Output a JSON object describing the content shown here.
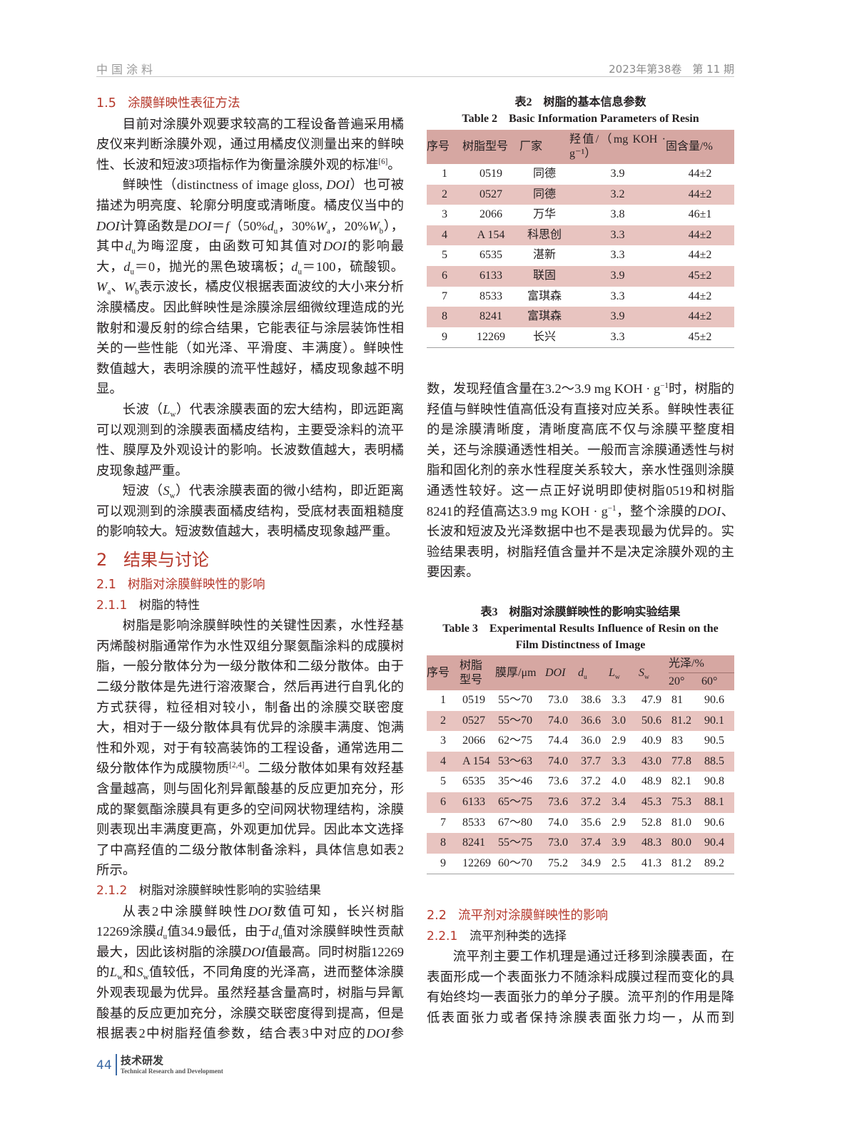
{
  "header": {
    "journal": "中国涂料",
    "issue": "2023年第38卷　第 11 期"
  },
  "footer": {
    "page": "44",
    "section_cn": "技术研发",
    "section_en": "Technical Research and Development"
  },
  "colors": {
    "heading": "#b5382b",
    "table_header": "#d6a7a2",
    "table_stripe": "#e8c4c0",
    "footer_accent": "#3c6aa5"
  },
  "left": {
    "s15": {
      "num": "1.5",
      "title": "涂膜鲜映性表征方法"
    },
    "p1": [
      "目前对涂膜外观要求较高的工程设备普遍采用橘皮仪来判断涂膜外观，通过用橘皮仪测量出来的鲜映性、长波和短波3项指标作为衡量涂膜外观的标准",
      {
        "sup": "[6]"
      },
      "。"
    ],
    "p2": [
      "鲜映性（distinctness of image gloss, ",
      {
        "i": "DOI"
      },
      "）也可被描述为明亮度、轮廓分明度或清晰度。橘皮仪当中的",
      {
        "i": "DOI"
      },
      "计算函数是",
      {
        "i": "DOI"
      },
      "＝",
      {
        "i": "f"
      },
      "（50%",
      {
        "i": "d"
      },
      {
        "sub": "u"
      },
      "，30%",
      {
        "i": "W"
      },
      {
        "sub": "a"
      },
      "，20%",
      {
        "i": "W"
      },
      {
        "sub": "b"
      },
      "），其中",
      {
        "i": "d"
      },
      {
        "sub": "u"
      },
      "为晦涩度，由函数可知其值对",
      {
        "i": "DOI"
      },
      "的影响最大，",
      {
        "i": "d"
      },
      {
        "sub": "u"
      },
      "＝0，抛光的黑色玻璃板；",
      {
        "i": "d"
      },
      {
        "sub": "u"
      },
      "＝100，硫酸钡。",
      {
        "i": "W"
      },
      {
        "sub": "a"
      },
      "、",
      {
        "i": "W"
      },
      {
        "sub": "b"
      },
      "表示波长，橘皮仪根据表面波纹的大小来分析涂膜橘皮。因此鲜映性是涂膜涂层细微纹理造成的光散射和漫反射的综合结果，它能表征与涂层装饰性相关的一些性能（如光泽、平滑度、丰满度）。鲜映性数值越大，表明涂膜的流平性越好，橘皮现象越不明显。"
    ],
    "p3": [
      "长波（",
      {
        "i": "L"
      },
      {
        "sub": "w"
      },
      "）代表涂膜表面的宏大结构，即远距离可以观测到的涂膜表面橘皮结构，主要受涂料的流平性、膜厚及外观设计的影响。长波数值越大，表明橘皮现象越严重。"
    ],
    "p4": [
      "短波（",
      {
        "i": "S"
      },
      {
        "sub": "w"
      },
      "）代表涂膜表面的微小结构，即近距离可以观测到的涂膜表面橘皮结构，受底材表面粗糙度的影响较大。短波数值越大，表明橘皮现象越严重。"
    ],
    "s2": {
      "num": "2",
      "title": "结果与讨论"
    },
    "s21": {
      "num": "2.1",
      "title": "树脂对涂膜鲜映性的影响"
    },
    "s211": {
      "num": "2.1.1",
      "title": "树脂的特性"
    },
    "p5": [
      "树脂是影响涂膜鲜映性的关键性因素，水性羟基丙烯酸树脂通常作为水性双组分聚氨酯涂料的成膜树脂，一般分散体分为一级分散体和二级分散体。由于二级分散体是先进行溶液聚合，然后再进行自乳化的方式获得，粒径相对较小，制备出的涂膜交联密度大，相对于一级分散体具有优异的涂膜丰满度、饱满性和外观，对于有较高装饰的工程设备，通常选用二级分散体作为成膜物质",
      {
        "sup": "[2,4]"
      },
      "。二级分散体如果有效羟基含量越高，则与固化剂异氰酸基的反应更加充分，形成的聚氨酯涂膜具有更多的空间网状物理结构，涂膜则表现出丰满度更高，外观更加优异。因此本文选择了中高羟值的二级分散体制备涂料，具体信息如表2所示。"
    ],
    "s212": {
      "num": "2.1.2",
      "title": "树脂对涂膜鲜映性影响的实验结果"
    },
    "p6": [
      "从表2中涂膜鲜映性",
      {
        "i": "DOI"
      },
      "数值可知，长兴树脂12269涂膜",
      {
        "i": "d"
      },
      {
        "sub": "u"
      },
      "值34.9最低，由于",
      {
        "i": "d"
      },
      {
        "sub": "u"
      },
      "值对涂膜鲜映性贡献最大，因此该树脂的涂膜",
      {
        "i": "DOI"
      },
      "值最高。同时树脂12269的",
      {
        "i": "L"
      },
      {
        "sub": "w"
      },
      "和",
      {
        "i": "S"
      },
      {
        "sub": "w"
      },
      "值较低，不同角度的光泽高，进而整体涂膜外观表现最为优异。虽然羟基含量高时，树脂与异氰酸基的反应更加充分，涂膜交联密度得到提高，但是根据表2中树脂羟值参数，结合表3中对应的",
      {
        "i": "DOI"
      },
      "参"
    ]
  },
  "table2": {
    "caption_cn": "表2　树脂的基本信息参数",
    "caption_en": "Table 2　Basic Information Parameters of Resin",
    "headers": [
      "序号",
      "树脂型号",
      "厂家",
      "羟值/（mg KOH · g⁻¹）",
      "固含量/%"
    ],
    "rows": [
      [
        "1",
        "0519",
        "同德",
        "3.9",
        "44±2"
      ],
      [
        "2",
        "0527",
        "同德",
        "3.2",
        "44±2"
      ],
      [
        "3",
        "2066",
        "万华",
        "3.8",
        "46±1"
      ],
      [
        "4",
        "A 154",
        "科思创",
        "3.3",
        "44±2"
      ],
      [
        "5",
        "6535",
        "湛新",
        "3.3",
        "44±2"
      ],
      [
        "6",
        "6133",
        "联固",
        "3.9",
        "45±2"
      ],
      [
        "7",
        "8533",
        "富琪森",
        "3.3",
        "44±2"
      ],
      [
        "8",
        "8241",
        "富琪森",
        "3.9",
        "44±2"
      ],
      [
        "9",
        "12269",
        "长兴",
        "3.3",
        "45±2"
      ]
    ]
  },
  "right": {
    "p7": [
      "数，发现羟值含量在3.2～3.9 mg KOH · g",
      {
        "sup": "−1"
      },
      "时，树脂的羟值与鲜映性值高低没有直接对应关系。鲜映性表征的是涂膜清晰度，清晰度高底不仅与涂膜平整度相关，还与涂膜通透性相关。一般而言涂膜通透性与树脂和固化剂的亲水性程度关系较大，亲水性强则涂膜通透性较好。这一点正好说明即使树脂0519和树脂8241的羟值高达3.9 mg KOH · g",
      {
        "sup": "−1"
      },
      "，整个涂膜的",
      {
        "i": "DOI"
      },
      "、长波和短波及光泽数据中也不是表现最为优异的。实验结果表明，树脂羟值含量并不是决定涂膜外观的主要因素。"
    ],
    "s22": {
      "num": "2.2",
      "title": "流平剂对涂膜鲜映性的影响"
    },
    "s221": {
      "num": "2.2.1",
      "title": "流平剂种类的选择"
    },
    "p8": [
      "流平剂主要工作机理是通过迁移到涂膜表面，在表面形成一个表面张力不随涂料成膜过程而变化的具有始终均一表面张力的单分子膜。流平剂的作用是降低表面张力或者保持涂膜表面张力均一，从而到"
    ]
  },
  "table3": {
    "caption_cn": "表3　树脂对涂膜鲜映性的影响实验结果",
    "caption_en_1": "Table 3　Experimental Results Influence of Resin on the",
    "caption_en_2": "Film Distinctness of Image",
    "headers": {
      "no": "序号",
      "resin_1": "树脂",
      "resin_2": "型号",
      "thickness": "膜厚/μm",
      "doi": "DOI",
      "du": "d",
      "du_sub": "u",
      "lw": "L",
      "lw_sub": "w",
      "sw": "S",
      "sw_sub": "w",
      "gloss": "光泽/%",
      "g20": "20°",
      "g60": "60°"
    },
    "rows": [
      [
        "1",
        "0519",
        "55～70",
        "73.0",
        "38.6",
        "3.3",
        "47.9",
        "81",
        "90.6"
      ],
      [
        "2",
        "0527",
        "55～70",
        "74.0",
        "36.6",
        "3.0",
        "50.6",
        "81.2",
        "90.1"
      ],
      [
        "3",
        "2066",
        "62～75",
        "74.4",
        "36.0",
        "2.9",
        "40.9",
        "83",
        "90.5"
      ],
      [
        "4",
        "A 154",
        "53～63",
        "74.0",
        "37.7",
        "3.3",
        "43.0",
        "77.8",
        "88.5"
      ],
      [
        "5",
        "6535",
        "35～46",
        "73.6",
        "37.2",
        "4.0",
        "48.9",
        "82.1",
        "90.8"
      ],
      [
        "6",
        "6133",
        "65～75",
        "73.6",
        "37.2",
        "3.4",
        "45.3",
        "75.3",
        "88.1"
      ],
      [
        "7",
        "8533",
        "67～80",
        "74.0",
        "35.6",
        "2.9",
        "52.8",
        "81.0",
        "90.6"
      ],
      [
        "8",
        "8241",
        "55～75",
        "73.0",
        "37.4",
        "3.9",
        "48.3",
        "80.0",
        "90.4"
      ],
      [
        "9",
        "12269",
        "60～70",
        "75.2",
        "34.9",
        "2.5",
        "41.3",
        "81.2",
        "89.2"
      ]
    ]
  }
}
